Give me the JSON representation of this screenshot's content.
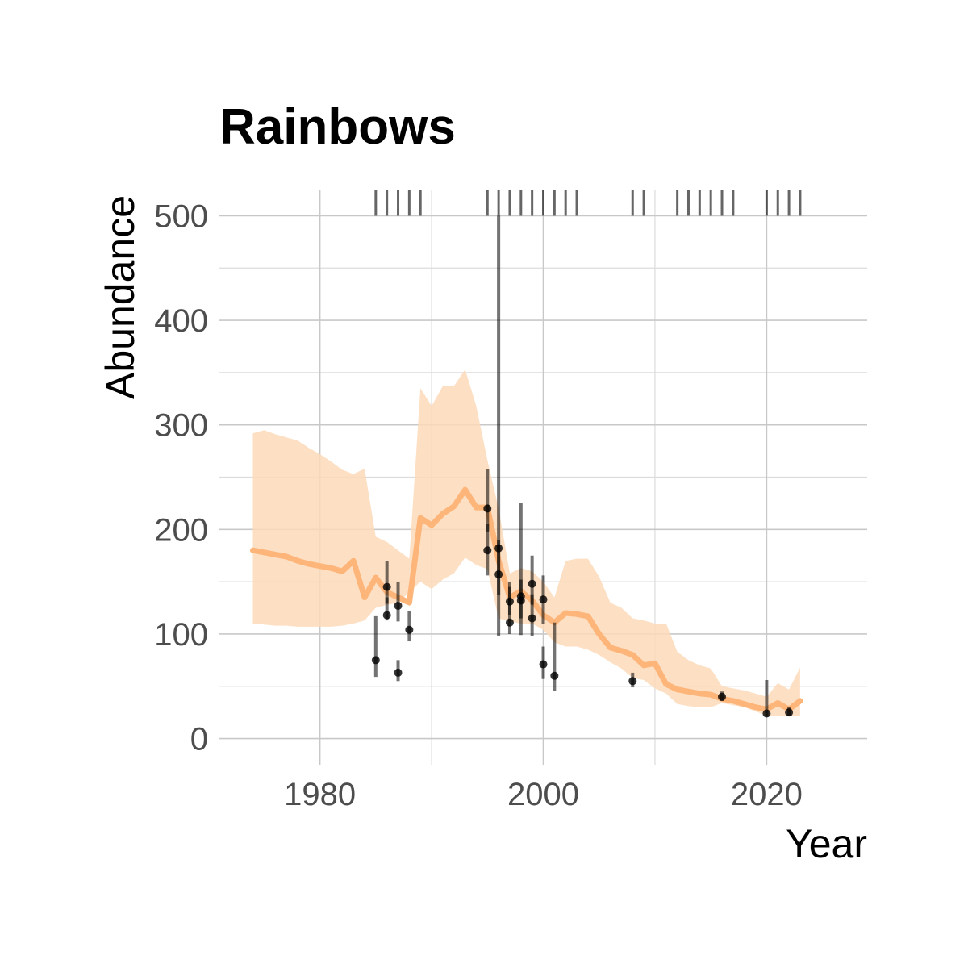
{
  "chart_data": {
    "type": "line",
    "title": "Rainbows",
    "xlabel": "Year",
    "ylabel": "Abundance",
    "xlim": [
      1971,
      2029
    ],
    "ylim": [
      -25,
      525
    ],
    "x_ticks": [
      1980,
      2000,
      2020
    ],
    "y_ticks": [
      0,
      100,
      200,
      300,
      400,
      500
    ],
    "grid": true,
    "legend": "none",
    "colors": {
      "line": "#fdb57a",
      "ribbon": "#fdd9b8",
      "points": "#000000"
    },
    "series": [
      {
        "kind": "fitted-line-with-ribbon",
        "x": [
          1974,
          1975,
          1976,
          1977,
          1978,
          1979,
          1980,
          1981,
          1982,
          1983,
          1984,
          1985,
          1986,
          1987,
          1988,
          1989,
          1990,
          1991,
          1992,
          1993,
          1994,
          1995,
          1996,
          1997,
          1998,
          1999,
          2000,
          2001,
          2002,
          2003,
          2004,
          2005,
          2006,
          2007,
          2008,
          2009,
          2010,
          2011,
          2012,
          2013,
          2014,
          2015,
          2016,
          2017,
          2018,
          2019,
          2020,
          2021,
          2022,
          2023
        ],
        "values": [
          180,
          178,
          176,
          174,
          170,
          167,
          165,
          163,
          160,
          170,
          135,
          154,
          140,
          135,
          130,
          211,
          204,
          215,
          222,
          238,
          221,
          221,
          170,
          135,
          141,
          132,
          118,
          111,
          120,
          119,
          117,
          100,
          87,
          84,
          80,
          70,
          72,
          52,
          47,
          45,
          43,
          42,
          38,
          36,
          33,
          30,
          28,
          34,
          28,
          36
        ],
        "lower": [
          110,
          109,
          108,
          108,
          107,
          107,
          107,
          107,
          108,
          110,
          113,
          125,
          128,
          130,
          140,
          150,
          143,
          152,
          158,
          173,
          166,
          162,
          115,
          112,
          110,
          110,
          104,
          92,
          88,
          88,
          85,
          80,
          73,
          67,
          58,
          56,
          48,
          43,
          33,
          31,
          30,
          30,
          34,
          32,
          30,
          26,
          22,
          22,
          22,
          22
        ],
        "upper": [
          292,
          295,
          291,
          288,
          285,
          278,
          272,
          265,
          257,
          253,
          258,
          193,
          188,
          180,
          172,
          335,
          318,
          337,
          337,
          353,
          318,
          266,
          220,
          158,
          163,
          160,
          150,
          135,
          170,
          172,
          172,
          155,
          130,
          125,
          115,
          113,
          110,
          110,
          83,
          75,
          70,
          67,
          50,
          48,
          46,
          43,
          40,
          53,
          47,
          68
        ]
      },
      {
        "kind": "observations",
        "points": [
          {
            "x": 1985,
            "y": 75,
            "lo": 59,
            "hi": 117
          },
          {
            "x": 1986,
            "y": 118,
            "lo": 113,
            "hi": 135
          },
          {
            "x": 1986,
            "y": 145,
            "lo": 129,
            "hi": 170
          },
          {
            "x": 1987,
            "y": 63,
            "lo": 55,
            "hi": 75
          },
          {
            "x": 1987,
            "y": 127,
            "lo": 112,
            "hi": 150
          },
          {
            "x": 1988,
            "y": 104,
            "lo": 93,
            "hi": 122
          },
          {
            "x": 1995,
            "y": 220,
            "lo": 198,
            "hi": 258
          },
          {
            "x": 1995,
            "y": 180,
            "lo": 156,
            "hi": 205
          },
          {
            "x": 1996,
            "y": 182,
            "lo": 98,
            "hi": 500
          },
          {
            "x": 1996,
            "y": 157,
            "lo": 137,
            "hi": 190
          },
          {
            "x": 1997,
            "y": 131,
            "lo": 118,
            "hi": 145
          },
          {
            "x": 1997,
            "y": 111,
            "lo": 100,
            "hi": 150
          },
          {
            "x": 1998,
            "y": 132,
            "lo": 115,
            "hi": 152
          },
          {
            "x": 1998,
            "y": 136,
            "lo": 99,
            "hi": 225
          },
          {
            "x": 1999,
            "y": 148,
            "lo": 128,
            "hi": 175
          },
          {
            "x": 1999,
            "y": 115,
            "lo": 98,
            "hi": 138
          },
          {
            "x": 2000,
            "y": 133,
            "lo": 110,
            "hi": 156
          },
          {
            "x": 2000,
            "y": 71,
            "lo": 57,
            "hi": 88
          },
          {
            "x": 2001,
            "y": 60,
            "lo": 46,
            "hi": 111
          },
          {
            "x": 2008,
            "y": 55,
            "lo": 49,
            "hi": 63
          },
          {
            "x": 2016,
            "y": 40,
            "lo": 36,
            "hi": 45
          },
          {
            "x": 2020,
            "y": 24,
            "lo": 21,
            "hi": 56
          },
          {
            "x": 2022,
            "y": 25,
            "lo": 22,
            "hi": 30
          }
        ]
      },
      {
        "kind": "rug",
        "x": [
          1985,
          1986,
          1987,
          1988,
          1989,
          1995,
          1996,
          1997,
          1998,
          1999,
          2000,
          2001,
          2002,
          2003,
          2008,
          2009,
          2012,
          2013,
          2014,
          2015,
          2016,
          2017,
          2020,
          2021,
          2022,
          2023
        ]
      }
    ]
  }
}
